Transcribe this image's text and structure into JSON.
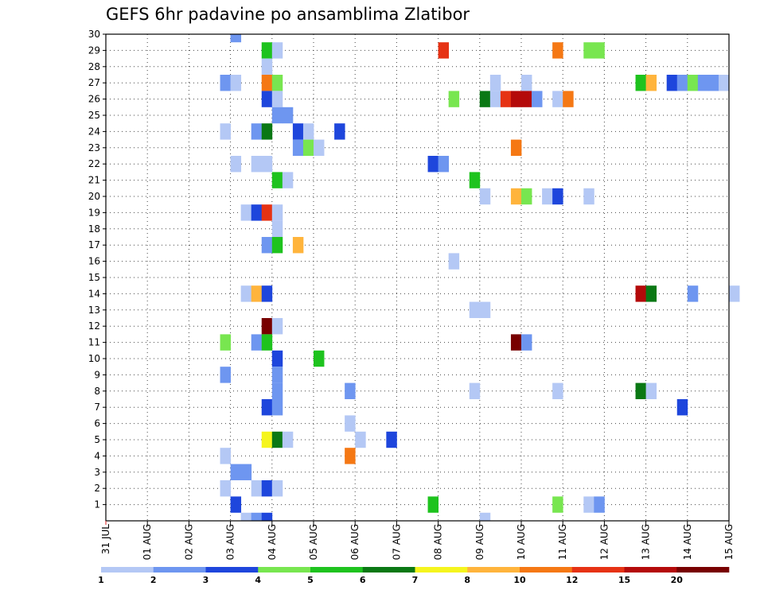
{
  "chart_data": {
    "type": "heatmap",
    "title": "GEFS 6hr padavine po ansamblima Zlatibor",
    "y_ticks": [
      "1",
      "2",
      "3",
      "4",
      "5",
      "6",
      "7",
      "8",
      "9",
      "10",
      "11",
      "12",
      "13",
      "14",
      "15",
      "16",
      "17",
      "18",
      "19",
      "20",
      "21",
      "22",
      "23",
      "24",
      "25",
      "26",
      "27",
      "28",
      "29",
      "30"
    ],
    "x_ticks": [
      "31 JUL",
      "01 AUG",
      "02 AUG",
      "03 AUG",
      "04 AUG",
      "05 AUG",
      "06 AUG",
      "07 AUG",
      "08 AUG",
      "09 AUG",
      "10 AUG",
      "11 AUG",
      "12 AUG",
      "13 AUG",
      "14 AUG",
      "15 AUG"
    ],
    "x_range_days": [
      0,
      15
    ],
    "y_range": [
      0,
      30
    ],
    "time_step_hours": 6,
    "colorbar": {
      "labels": [
        "1",
        "2",
        "3",
        "4",
        "5",
        "6",
        "7",
        "8",
        "10",
        "12",
        "15",
        "20"
      ],
      "colors": [
        "#b4c8f5",
        "#6e96f0",
        "#1e46dc",
        "#78e650",
        "#1ec31e",
        "#0a7814",
        "#f5f51e",
        "#ffb43c",
        "#f57814",
        "#e63214",
        "#b40a0a",
        "#780000"
      ]
    },
    "cells": [
      {
        "member": 30,
        "t": 12,
        "c": 1
      },
      {
        "member": 29,
        "t": 15,
        "c": 4
      },
      {
        "member": 29,
        "t": 16,
        "c": 0
      },
      {
        "member": 29,
        "t": 32,
        "c": 9
      },
      {
        "member": 29,
        "t": 43,
        "c": 8
      },
      {
        "member": 29,
        "t": 46,
        "c": 3
      },
      {
        "member": 29,
        "t": 47,
        "c": 3
      },
      {
        "member": 28,
        "t": 15,
        "c": 0
      },
      {
        "member": 27,
        "t": 11,
        "c": 1
      },
      {
        "member": 27,
        "t": 12,
        "c": 0
      },
      {
        "member": 27,
        "t": 15,
        "c": 8
      },
      {
        "member": 27,
        "t": 16,
        "c": 3
      },
      {
        "member": 27,
        "t": 37,
        "c": 0
      },
      {
        "member": 27,
        "t": 40,
        "c": 0
      },
      {
        "member": 27,
        "t": 51,
        "c": 4
      },
      {
        "member": 27,
        "t": 52,
        "c": 7
      },
      {
        "member": 27,
        "t": 54,
        "c": 2
      },
      {
        "member": 27,
        "t": 55,
        "c": 1
      },
      {
        "member": 27,
        "t": 56,
        "c": 3
      },
      {
        "member": 27,
        "t": 57,
        "c": 1
      },
      {
        "member": 27,
        "t": 58,
        "c": 1
      },
      {
        "member": 27,
        "t": 59,
        "c": 0
      },
      {
        "member": 26,
        "t": 15,
        "c": 2
      },
      {
        "member": 26,
        "t": 16,
        "c": 0
      },
      {
        "member": 26,
        "t": 33,
        "c": 3
      },
      {
        "member": 26,
        "t": 36,
        "c": 5
      },
      {
        "member": 26,
        "t": 37,
        "c": 0
      },
      {
        "member": 26,
        "t": 38,
        "c": 9
      },
      {
        "member": 26,
        "t": 39,
        "c": 10
      },
      {
        "member": 26,
        "t": 40,
        "c": 10
      },
      {
        "member": 26,
        "t": 41,
        "c": 1
      },
      {
        "member": 26,
        "t": 43,
        "c": 0
      },
      {
        "member": 26,
        "t": 44,
        "c": 8
      },
      {
        "member": 25,
        "t": 16,
        "c": 1
      },
      {
        "member": 25,
        "t": 17,
        "c": 1
      },
      {
        "member": 24,
        "t": 11,
        "c": 0
      },
      {
        "member": 24,
        "t": 14,
        "c": 1
      },
      {
        "member": 24,
        "t": 15,
        "c": 5
      },
      {
        "member": 24,
        "t": 18,
        "c": 2
      },
      {
        "member": 24,
        "t": 19,
        "c": 0
      },
      {
        "member": 24,
        "t": 22,
        "c": 2
      },
      {
        "member": 23,
        "t": 18,
        "c": 1
      },
      {
        "member": 23,
        "t": 19,
        "c": 3
      },
      {
        "member": 23,
        "t": 20,
        "c": 0
      },
      {
        "member": 23,
        "t": 39,
        "c": 8
      },
      {
        "member": 22,
        "t": 12,
        "c": 0
      },
      {
        "member": 22,
        "t": 14,
        "c": 0
      },
      {
        "member": 22,
        "t": 15,
        "c": 0
      },
      {
        "member": 22,
        "t": 31,
        "c": 2
      },
      {
        "member": 22,
        "t": 32,
        "c": 1
      },
      {
        "member": 21,
        "t": 16,
        "c": 4
      },
      {
        "member": 21,
        "t": 17,
        "c": 0
      },
      {
        "member": 21,
        "t": 35,
        "c": 4
      },
      {
        "member": 20,
        "t": 36,
        "c": 0
      },
      {
        "member": 20,
        "t": 39,
        "c": 7
      },
      {
        "member": 20,
        "t": 40,
        "c": 3
      },
      {
        "member": 20,
        "t": 42,
        "c": 0
      },
      {
        "member": 20,
        "t": 43,
        "c": 2
      },
      {
        "member": 20,
        "t": 46,
        "c": 0
      },
      {
        "member": 19,
        "t": 13,
        "c": 0
      },
      {
        "member": 19,
        "t": 14,
        "c": 2
      },
      {
        "member": 19,
        "t": 15,
        "c": 9
      },
      {
        "member": 19,
        "t": 16,
        "c": 0
      },
      {
        "member": 18,
        "t": 16,
        "c": 0
      },
      {
        "member": 17,
        "t": 15,
        "c": 1
      },
      {
        "member": 17,
        "t": 16,
        "c": 4
      },
      {
        "member": 17,
        "t": 18,
        "c": 7
      },
      {
        "member": 16,
        "t": 33,
        "c": 0
      },
      {
        "member": 14,
        "t": 13,
        "c": 0
      },
      {
        "member": 14,
        "t": 14,
        "c": 7
      },
      {
        "member": 14,
        "t": 15,
        "c": 2
      },
      {
        "member": 14,
        "t": 51,
        "c": 10
      },
      {
        "member": 14,
        "t": 52,
        "c": 5
      },
      {
        "member": 14,
        "t": 56,
        "c": 1
      },
      {
        "member": 14,
        "t": 60,
        "c": 0
      },
      {
        "member": 13,
        "t": 35,
        "c": 0
      },
      {
        "member": 13,
        "t": 36,
        "c": 0
      },
      {
        "member": 12,
        "t": 15,
        "c": 11
      },
      {
        "member": 12,
        "t": 16,
        "c": 0
      },
      {
        "member": 11,
        "t": 11,
        "c": 3
      },
      {
        "member": 11,
        "t": 14,
        "c": 1
      },
      {
        "member": 11,
        "t": 15,
        "c": 4
      },
      {
        "member": 11,
        "t": 39,
        "c": 11
      },
      {
        "member": 11,
        "t": 40,
        "c": 1
      },
      {
        "member": 10,
        "t": 16,
        "c": 2
      },
      {
        "member": 10,
        "t": 20,
        "c": 4
      },
      {
        "member": 9,
        "t": 11,
        "c": 1
      },
      {
        "member": 9,
        "t": 16,
        "c": 1
      },
      {
        "member": 8,
        "t": 16,
        "c": 1
      },
      {
        "member": 8,
        "t": 23,
        "c": 1
      },
      {
        "member": 8,
        "t": 35,
        "c": 0
      },
      {
        "member": 8,
        "t": 43,
        "c": 0
      },
      {
        "member": 8,
        "t": 51,
        "c": 5
      },
      {
        "member": 8,
        "t": 52,
        "c": 0
      },
      {
        "member": 7,
        "t": 15,
        "c": 2
      },
      {
        "member": 7,
        "t": 16,
        "c": 1
      },
      {
        "member": 7,
        "t": 55,
        "c": 2
      },
      {
        "member": 6,
        "t": 23,
        "c": 0
      },
      {
        "member": 5,
        "t": 15,
        "c": 6
      },
      {
        "member": 5,
        "t": 16,
        "c": 5
      },
      {
        "member": 5,
        "t": 17,
        "c": 0
      },
      {
        "member": 5,
        "t": 24,
        "c": 0
      },
      {
        "member": 5,
        "t": 27,
        "c": 2
      },
      {
        "member": 4,
        "t": 11,
        "c": 0
      },
      {
        "member": 4,
        "t": 23,
        "c": 8
      },
      {
        "member": 3,
        "t": 12,
        "c": 1
      },
      {
        "member": 3,
        "t": 13,
        "c": 1
      },
      {
        "member": 2,
        "t": 11,
        "c": 0
      },
      {
        "member": 2,
        "t": 14,
        "c": 0
      },
      {
        "member": 2,
        "t": 15,
        "c": 2
      },
      {
        "member": 2,
        "t": 16,
        "c": 0
      },
      {
        "member": 1,
        "t": 12,
        "c": 2
      },
      {
        "member": 1,
        "t": 31,
        "c": 4
      },
      {
        "member": 1,
        "t": 43,
        "c": 3
      },
      {
        "member": 1,
        "t": 46,
        "c": 0
      },
      {
        "member": 1,
        "t": 47,
        "c": 1
      },
      {
        "member": 0,
        "t": 13,
        "c": 0
      },
      {
        "member": 0,
        "t": 14,
        "c": 1
      },
      {
        "member": 0,
        "t": 15,
        "c": 2
      },
      {
        "member": 0,
        "t": 36,
        "c": 0
      }
    ]
  }
}
